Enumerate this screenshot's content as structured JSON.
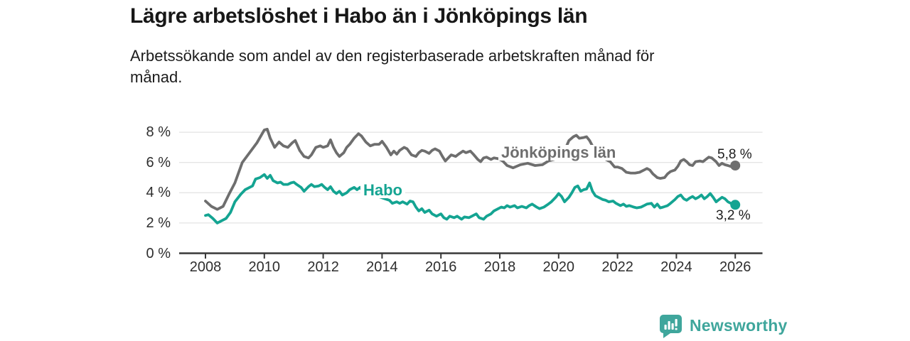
{
  "header": {
    "title": "Lägre arbetslöshet i Habo än i Jönköpings län",
    "subtitle": "Arbetssökande som andel av den registerbaserade arbetskraften månad för\nmånad."
  },
  "footer": {
    "brand": "Newsworthy",
    "logo_icon": "newsworthy-speech-bubble-bar-chart-icon",
    "brand_color": "#3fa69c"
  },
  "chart_data": {
    "type": "line",
    "title": "Lägre arbetslöshet i Habo än i Jönköpings län",
    "xlabel": "",
    "ylabel": "",
    "grid": true,
    "grid_color": "#dcdcdc",
    "axis_color": "#383838",
    "tick_label_color": "#2e2e2e",
    "xlim": [
      2007.1,
      2026.9
    ],
    "ylim": [
      0,
      8.75
    ],
    "x_ticks": [
      2008,
      2010,
      2012,
      2014,
      2016,
      2018,
      2020,
      2022,
      2024,
      2026
    ],
    "y_ticks": [
      {
        "value": 0,
        "label": "0 %"
      },
      {
        "value": 2,
        "label": "2 %"
      },
      {
        "value": 4,
        "label": "4 %"
      },
      {
        "value": 6,
        "label": "6 %"
      },
      {
        "value": 8,
        "label": "8 %"
      }
    ],
    "series": [
      {
        "id": "jonkopings-lan",
        "name": "Jönköpings län",
        "color": "#6e6e6e",
        "end_label": "5,8 %",
        "end_value": 5.8,
        "points": [
          [
            2008.0,
            3.45
          ],
          [
            2008.2,
            3.1
          ],
          [
            2008.4,
            2.9
          ],
          [
            2008.6,
            3.1
          ],
          [
            2008.8,
            3.9
          ],
          [
            2009.0,
            4.65
          ],
          [
            2009.25,
            6.0
          ],
          [
            2009.5,
            6.65
          ],
          [
            2009.75,
            7.3
          ],
          [
            2010.0,
            8.15
          ],
          [
            2010.1,
            8.2
          ],
          [
            2010.2,
            7.6
          ],
          [
            2010.35,
            7.0
          ],
          [
            2010.5,
            7.35
          ],
          [
            2010.65,
            7.1
          ],
          [
            2010.8,
            7.0
          ],
          [
            2010.95,
            7.3
          ],
          [
            2011.05,
            7.45
          ],
          [
            2011.2,
            6.8
          ],
          [
            2011.35,
            6.4
          ],
          [
            2011.5,
            6.3
          ],
          [
            2011.6,
            6.5
          ],
          [
            2011.75,
            7.0
          ],
          [
            2011.9,
            7.1
          ],
          [
            2012.0,
            7.0
          ],
          [
            2012.15,
            7.1
          ],
          [
            2012.25,
            7.5
          ],
          [
            2012.35,
            7.0
          ],
          [
            2012.45,
            6.65
          ],
          [
            2012.55,
            6.4
          ],
          [
            2012.7,
            6.65
          ],
          [
            2012.8,
            7.0
          ],
          [
            2012.9,
            7.2
          ],
          [
            2013.05,
            7.6
          ],
          [
            2013.2,
            7.9
          ],
          [
            2013.3,
            7.75
          ],
          [
            2013.45,
            7.35
          ],
          [
            2013.6,
            7.1
          ],
          [
            2013.75,
            7.2
          ],
          [
            2013.9,
            7.2
          ],
          [
            2014.0,
            7.4
          ],
          [
            2014.15,
            7.0
          ],
          [
            2014.3,
            6.5
          ],
          [
            2014.4,
            6.75
          ],
          [
            2014.5,
            6.55
          ],
          [
            2014.6,
            6.8
          ],
          [
            2014.75,
            7.0
          ],
          [
            2014.85,
            6.9
          ],
          [
            2015.0,
            6.5
          ],
          [
            2015.15,
            6.4
          ],
          [
            2015.25,
            6.65
          ],
          [
            2015.35,
            6.8
          ],
          [
            2015.45,
            6.75
          ],
          [
            2015.6,
            6.6
          ],
          [
            2015.7,
            6.8
          ],
          [
            2015.8,
            6.9
          ],
          [
            2015.95,
            6.75
          ],
          [
            2016.05,
            6.4
          ],
          [
            2016.15,
            6.1
          ],
          [
            2016.25,
            6.3
          ],
          [
            2016.35,
            6.5
          ],
          [
            2016.5,
            6.4
          ],
          [
            2016.6,
            6.55
          ],
          [
            2016.75,
            6.75
          ],
          [
            2016.85,
            6.65
          ],
          [
            2017.0,
            6.75
          ],
          [
            2017.1,
            6.55
          ],
          [
            2017.25,
            6.2
          ],
          [
            2017.35,
            6.05
          ],
          [
            2017.45,
            6.3
          ],
          [
            2017.55,
            6.35
          ],
          [
            2017.7,
            6.2
          ],
          [
            2017.8,
            6.3
          ],
          [
            2017.95,
            6.25
          ],
          [
            2018.1,
            6.1
          ],
          [
            2018.25,
            5.8
          ],
          [
            2018.45,
            5.65
          ],
          [
            2018.7,
            5.85
          ],
          [
            2018.95,
            5.95
          ],
          [
            2019.2,
            5.8
          ],
          [
            2019.45,
            5.85
          ],
          [
            2019.65,
            6.1
          ],
          [
            2019.85,
            6.2
          ],
          [
            2020.0,
            6.4
          ],
          [
            2020.15,
            6.6
          ],
          [
            2020.25,
            7.0
          ],
          [
            2020.35,
            7.45
          ],
          [
            2020.5,
            7.7
          ],
          [
            2020.6,
            7.8
          ],
          [
            2020.7,
            7.6
          ],
          [
            2020.85,
            7.65
          ],
          [
            2020.95,
            7.7
          ],
          [
            2021.05,
            7.45
          ],
          [
            2021.2,
            6.9
          ],
          [
            2021.35,
            6.5
          ],
          [
            2021.45,
            6.35
          ],
          [
            2021.6,
            6.2
          ],
          [
            2021.75,
            6.05
          ],
          [
            2021.9,
            5.7
          ],
          [
            2022.0,
            5.7
          ],
          [
            2022.15,
            5.6
          ],
          [
            2022.3,
            5.35
          ],
          [
            2022.45,
            5.3
          ],
          [
            2022.6,
            5.3
          ],
          [
            2022.75,
            5.35
          ],
          [
            2022.9,
            5.5
          ],
          [
            2023.0,
            5.6
          ],
          [
            2023.1,
            5.5
          ],
          [
            2023.2,
            5.25
          ],
          [
            2023.35,
            5.0
          ],
          [
            2023.45,
            4.95
          ],
          [
            2023.6,
            5.0
          ],
          [
            2023.7,
            5.25
          ],
          [
            2023.8,
            5.4
          ],
          [
            2023.95,
            5.5
          ],
          [
            2024.05,
            5.75
          ],
          [
            2024.15,
            6.1
          ],
          [
            2024.25,
            6.2
          ],
          [
            2024.35,
            6.05
          ],
          [
            2024.45,
            5.85
          ],
          [
            2024.55,
            5.8
          ],
          [
            2024.65,
            6.05
          ],
          [
            2024.8,
            6.1
          ],
          [
            2024.9,
            6.05
          ],
          [
            2025.0,
            6.2
          ],
          [
            2025.1,
            6.35
          ],
          [
            2025.2,
            6.3
          ],
          [
            2025.35,
            6.05
          ],
          [
            2025.45,
            5.8
          ],
          [
            2025.55,
            5.95
          ],
          [
            2025.65,
            5.85
          ],
          [
            2025.75,
            5.8
          ],
          [
            2025.9,
            5.7
          ],
          [
            2026.0,
            5.8
          ]
        ]
      },
      {
        "id": "habo",
        "name": "Habo",
        "color": "#14a492",
        "end_label": "3,2 %",
        "end_value": 3.2,
        "points": [
          [
            2008.0,
            2.5
          ],
          [
            2008.1,
            2.55
          ],
          [
            2008.25,
            2.3
          ],
          [
            2008.4,
            2.0
          ],
          [
            2008.55,
            2.15
          ],
          [
            2008.7,
            2.3
          ],
          [
            2008.85,
            2.7
          ],
          [
            2009.0,
            3.4
          ],
          [
            2009.2,
            3.9
          ],
          [
            2009.35,
            4.2
          ],
          [
            2009.5,
            4.35
          ],
          [
            2009.6,
            4.45
          ],
          [
            2009.7,
            4.9
          ],
          [
            2009.85,
            5.0
          ],
          [
            2010.0,
            5.2
          ],
          [
            2010.1,
            4.95
          ],
          [
            2010.2,
            5.15
          ],
          [
            2010.3,
            4.8
          ],
          [
            2010.45,
            4.65
          ],
          [
            2010.55,
            4.7
          ],
          [
            2010.65,
            4.55
          ],
          [
            2010.8,
            4.55
          ],
          [
            2010.9,
            4.65
          ],
          [
            2011.0,
            4.7
          ],
          [
            2011.1,
            4.55
          ],
          [
            2011.25,
            4.35
          ],
          [
            2011.35,
            4.1
          ],
          [
            2011.5,
            4.4
          ],
          [
            2011.6,
            4.55
          ],
          [
            2011.7,
            4.4
          ],
          [
            2011.85,
            4.45
          ],
          [
            2011.95,
            4.55
          ],
          [
            2012.05,
            4.35
          ],
          [
            2012.15,
            4.2
          ],
          [
            2012.25,
            4.4
          ],
          [
            2012.35,
            4.1
          ],
          [
            2012.45,
            3.95
          ],
          [
            2012.55,
            4.1
          ],
          [
            2012.65,
            3.85
          ],
          [
            2012.8,
            4.0
          ],
          [
            2012.9,
            4.2
          ],
          [
            2013.05,
            4.35
          ],
          [
            2013.15,
            4.2
          ],
          [
            2013.25,
            4.35
          ],
          [
            2013.35,
            4.1
          ],
          [
            2013.5,
            3.95
          ],
          [
            2013.65,
            4.0
          ],
          [
            2013.8,
            3.8
          ],
          [
            2013.95,
            3.7
          ],
          [
            2014.1,
            3.6
          ],
          [
            2014.25,
            3.5
          ],
          [
            2014.35,
            3.3
          ],
          [
            2014.5,
            3.4
          ],
          [
            2014.6,
            3.3
          ],
          [
            2014.7,
            3.4
          ],
          [
            2014.85,
            3.25
          ],
          [
            2014.95,
            3.45
          ],
          [
            2015.05,
            3.4
          ],
          [
            2015.15,
            3.05
          ],
          [
            2015.25,
            2.8
          ],
          [
            2015.35,
            2.95
          ],
          [
            2015.45,
            2.7
          ],
          [
            2015.6,
            2.85
          ],
          [
            2015.7,
            2.6
          ],
          [
            2015.85,
            2.45
          ],
          [
            2016.0,
            2.6
          ],
          [
            2016.1,
            2.35
          ],
          [
            2016.2,
            2.25
          ],
          [
            2016.3,
            2.45
          ],
          [
            2016.45,
            2.35
          ],
          [
            2016.55,
            2.45
          ],
          [
            2016.7,
            2.25
          ],
          [
            2016.8,
            2.4
          ],
          [
            2016.95,
            2.35
          ],
          [
            2017.05,
            2.45
          ],
          [
            2017.2,
            2.6
          ],
          [
            2017.3,
            2.35
          ],
          [
            2017.45,
            2.25
          ],
          [
            2017.55,
            2.45
          ],
          [
            2017.7,
            2.6
          ],
          [
            2017.8,
            2.8
          ],
          [
            2017.95,
            2.95
          ],
          [
            2018.05,
            3.05
          ],
          [
            2018.15,
            3.0
          ],
          [
            2018.25,
            3.15
          ],
          [
            2018.35,
            3.05
          ],
          [
            2018.5,
            3.15
          ],
          [
            2018.6,
            3.0
          ],
          [
            2018.75,
            3.1
          ],
          [
            2018.9,
            3.0
          ],
          [
            2019.0,
            3.15
          ],
          [
            2019.1,
            3.25
          ],
          [
            2019.25,
            3.05
          ],
          [
            2019.35,
            2.95
          ],
          [
            2019.5,
            3.05
          ],
          [
            2019.65,
            3.25
          ],
          [
            2019.75,
            3.4
          ],
          [
            2019.9,
            3.7
          ],
          [
            2020.0,
            3.95
          ],
          [
            2020.1,
            3.75
          ],
          [
            2020.2,
            3.4
          ],
          [
            2020.35,
            3.7
          ],
          [
            2020.45,
            4.0
          ],
          [
            2020.55,
            4.35
          ],
          [
            2020.65,
            4.45
          ],
          [
            2020.75,
            4.1
          ],
          [
            2020.85,
            4.2
          ],
          [
            2020.95,
            4.25
          ],
          [
            2021.05,
            4.65
          ],
          [
            2021.15,
            4.1
          ],
          [
            2021.25,
            3.8
          ],
          [
            2021.4,
            3.65
          ],
          [
            2021.5,
            3.55
          ],
          [
            2021.6,
            3.5
          ],
          [
            2021.7,
            3.4
          ],
          [
            2021.85,
            3.45
          ],
          [
            2021.95,
            3.3
          ],
          [
            2022.1,
            3.15
          ],
          [
            2022.2,
            3.25
          ],
          [
            2022.3,
            3.1
          ],
          [
            2022.4,
            3.15
          ],
          [
            2022.55,
            3.05
          ],
          [
            2022.65,
            3.0
          ],
          [
            2022.8,
            3.05
          ],
          [
            2022.9,
            3.15
          ],
          [
            2023.0,
            3.25
          ],
          [
            2023.15,
            3.3
          ],
          [
            2023.25,
            3.05
          ],
          [
            2023.35,
            3.25
          ],
          [
            2023.45,
            3.0
          ],
          [
            2023.55,
            3.05
          ],
          [
            2023.7,
            3.15
          ],
          [
            2023.8,
            3.3
          ],
          [
            2023.95,
            3.55
          ],
          [
            2024.05,
            3.75
          ],
          [
            2024.15,
            3.85
          ],
          [
            2024.25,
            3.6
          ],
          [
            2024.35,
            3.5
          ],
          [
            2024.45,
            3.65
          ],
          [
            2024.55,
            3.75
          ],
          [
            2024.65,
            3.6
          ],
          [
            2024.75,
            3.7
          ],
          [
            2024.85,
            3.85
          ],
          [
            2024.95,
            3.6
          ],
          [
            2025.05,
            3.75
          ],
          [
            2025.15,
            3.95
          ],
          [
            2025.25,
            3.7
          ],
          [
            2025.35,
            3.4
          ],
          [
            2025.45,
            3.55
          ],
          [
            2025.55,
            3.7
          ],
          [
            2025.65,
            3.6
          ],
          [
            2025.75,
            3.4
          ],
          [
            2025.85,
            3.3
          ],
          [
            2026.0,
            3.2
          ]
        ]
      }
    ]
  }
}
